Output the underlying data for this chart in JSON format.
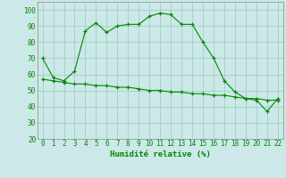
{
  "x": [
    0,
    1,
    2,
    3,
    4,
    5,
    6,
    7,
    8,
    9,
    10,
    11,
    12,
    13,
    14,
    15,
    16,
    17,
    18,
    19,
    20,
    21,
    22
  ],
  "upper": [
    70,
    58,
    56,
    62,
    87,
    92,
    86,
    90,
    91,
    91,
    96,
    98,
    97,
    91,
    91,
    80,
    70,
    56,
    49,
    45,
    44,
    37,
    45
  ],
  "lower": [
    57,
    56,
    55,
    54,
    54,
    53,
    53,
    52,
    52,
    51,
    50,
    50,
    49,
    49,
    48,
    48,
    47,
    47,
    46,
    45,
    45,
    44,
    44
  ],
  "line_color": "#008800",
  "marker": "+",
  "bg_color": "#cce8e8",
  "grid_color": "#99ccbb",
  "xlabel": "Humidité relative (%)",
  "xlim": [
    -0.5,
    22.5
  ],
  "ylim": [
    20,
    105
  ],
  "yticks": [
    20,
    30,
    40,
    50,
    60,
    70,
    80,
    90,
    100
  ],
  "xticks": [
    0,
    1,
    2,
    3,
    4,
    5,
    6,
    7,
    8,
    9,
    10,
    11,
    12,
    13,
    14,
    15,
    16,
    17,
    18,
    19,
    20,
    21,
    22
  ],
  "tick_fontsize": 5.5,
  "xlabel_fontsize": 6.5
}
